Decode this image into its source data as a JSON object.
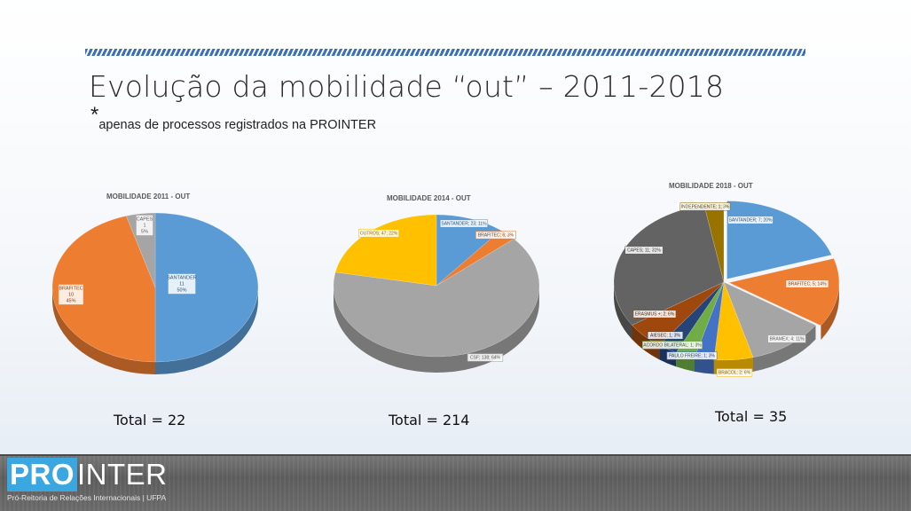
{
  "page": {
    "title": "Evolução da mobilidade “out” – 2011-2018",
    "subtitle_star": "*",
    "subtitle": "apenas de processos registrados na PROINTER"
  },
  "footer": {
    "logo_pro": "PRO",
    "logo_inter": "INTER",
    "logo_sub": "Pró-Reitoria de Relações Internacionais | UFPA"
  },
  "chart_data": [
    {
      "type": "pie",
      "title": "MOBILIDADE 2011 - OUT",
      "total_label": "Total = 22",
      "slices": [
        {
          "name": "SANTANDER",
          "value": 11,
          "pct": "50%",
          "color": "#5b9bd5",
          "label": [
            "SANTANDER",
            "11",
            "50%"
          ]
        },
        {
          "name": "BRAFITEC",
          "value": 10,
          "pct": "45%",
          "color": "#ed7d31",
          "label": [
            "BRAFITEC",
            "10",
            "45%"
          ]
        },
        {
          "name": "CAPES",
          "value": 1,
          "pct": "5%",
          "color": "#a5a5a5",
          "label": [
            "CAPES",
            "1",
            "5%"
          ]
        }
      ]
    },
    {
      "type": "pie",
      "title": "MOBILIDADE 2014 - OUT",
      "total_label": "Total = 214",
      "slices": [
        {
          "name": "SANTANDER",
          "value": 23,
          "pct": "11%",
          "color": "#5b9bd5",
          "label": [
            "SANTANDER; 23; 11%"
          ]
        },
        {
          "name": "BRAFITEC",
          "value": 6,
          "pct": "3%",
          "color": "#ed7d31",
          "label": [
            "BRAFITEC; 6; 3%"
          ]
        },
        {
          "name": "CSF",
          "value": 138,
          "pct": "64%",
          "color": "#a5a5a5",
          "label": [
            "CSF; 138; 64%"
          ]
        },
        {
          "name": "OUTROS",
          "value": 47,
          "pct": "22%",
          "color": "#ffc000",
          "label": [
            "OUTROS; 47; 22%"
          ]
        }
      ]
    },
    {
      "type": "pie",
      "title": "MOBILIDADE 2018 - OUT",
      "total_label": "Total = 35",
      "slices": [
        {
          "name": "SANTANDER",
          "value": 7,
          "pct": "20%",
          "color": "#5b9bd5",
          "label": [
            "SANTANDER; 7; 20%"
          ]
        },
        {
          "name": "BRAFITEC",
          "value": 5,
          "pct": "14%",
          "color": "#ed7d31",
          "label": [
            "BRAFITEC; 5; 14%"
          ]
        },
        {
          "name": "BRAMEX",
          "value": 4,
          "pct": "11%",
          "color": "#a5a5a5",
          "label": [
            "BRAMEX; 4; 11%"
          ]
        },
        {
          "name": "BRACOL",
          "value": 2,
          "pct": "6%",
          "color": "#ffc000",
          "label": [
            "BRACOL; 2; 6%"
          ]
        },
        {
          "name": "PAULO FREIRE",
          "value": 1,
          "pct": "3%",
          "color": "#4472c4",
          "label": [
            "PAULO FREIRE; 1; 3%"
          ]
        },
        {
          "name": "ACORDO BILATERAL",
          "value": 1,
          "pct": "3%",
          "color": "#70ad47",
          "label": [
            "ACORDO BILATERAL; 1; 3%"
          ]
        },
        {
          "name": "AIESEC",
          "value": 1,
          "pct": "3%",
          "color": "#264478",
          "label": [
            "AIESEC; 1; 3%"
          ]
        },
        {
          "name": "ERASMUS +",
          "value": 2,
          "pct": "6%",
          "color": "#9e480e",
          "label": [
            "ERASMUS +; 2; 6%"
          ]
        },
        {
          "name": "CAPES",
          "value": 11,
          "pct": "31%",
          "color": "#636363",
          "label": [
            "CAPES; 11; 31%"
          ]
        },
        {
          "name": "INDEPENDENTE",
          "value": 1,
          "pct": "3%",
          "color": "#997300",
          "label": [
            "INDEPENDENTE; 1; 3%"
          ]
        }
      ]
    }
  ]
}
